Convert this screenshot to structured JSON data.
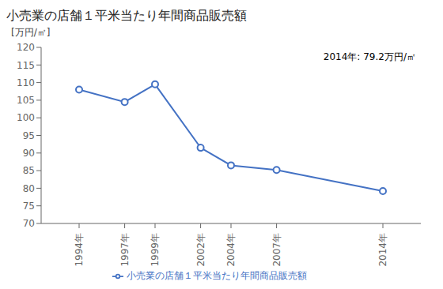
{
  "chart_data": {
    "type": "line",
    "title": "小売業の店舗１平米当たり年間商品販売額",
    "y_label": "[万円/㎡]",
    "annotation": "2014年: 79.2万円/㎡",
    "x": [
      1994,
      1997,
      1999,
      2002,
      2004,
      2007,
      2014
    ],
    "series": [
      {
        "name": "小売業の店舗１平米当たり年間商品販売額",
        "color": "#4472c4",
        "marker": "circle",
        "values": [
          108.0,
          104.5,
          109.5,
          91.5,
          86.5,
          85.2,
          79.2
        ]
      }
    ],
    "xlim": [
      1991.5,
      2016.5
    ],
    "xticks": [
      {
        "value": 1994,
        "label": "1994年"
      },
      {
        "value": 1997,
        "label": "1997年"
      },
      {
        "value": 1999,
        "label": "1999年"
      },
      {
        "value": 2002,
        "label": "2002年"
      },
      {
        "value": 2004,
        "label": "2004年"
      },
      {
        "value": 2007,
        "label": "2007年"
      },
      {
        "value": 2014,
        "label": "2014年"
      }
    ],
    "ylim": [
      70,
      120
    ],
    "yticks": [
      70,
      75,
      80,
      85,
      90,
      95,
      100,
      105,
      110,
      115,
      120
    ],
    "grid": false,
    "legend": "bottom"
  }
}
